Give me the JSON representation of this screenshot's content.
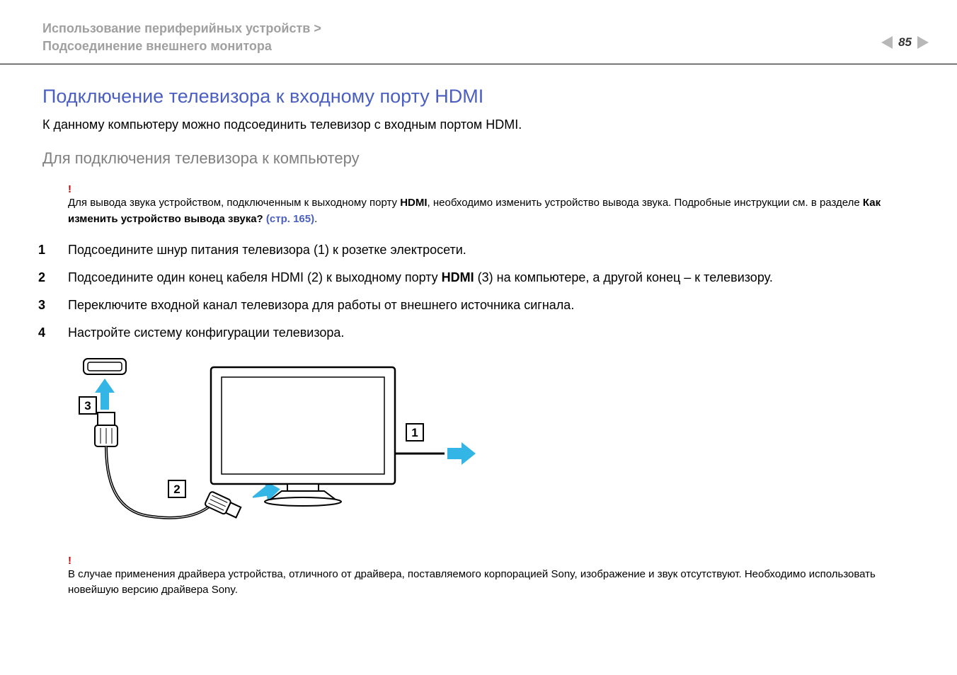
{
  "header": {
    "breadcrumb_line1": "Использование периферийных устройств >",
    "breadcrumb_line2": "Подсоединение внешнего монитора",
    "page_number": "85"
  },
  "colors": {
    "title": "#4a5fc1",
    "muted": "#a0a0a0",
    "warn": "#d00000",
    "accent": "#33b5e5",
    "diagram_stroke": "#000000",
    "nav_arrow": "#b8b8b8"
  },
  "content": {
    "title": "Подключение телевизора к входному порту HDMI",
    "intro": "К данному компьютеру можно подсоединить телевизор с входным портом HDMI.",
    "subheading": "Для подключения телевизора к компьютеру",
    "warning1": {
      "mark": "!",
      "prefix": "Для вывода звука устройством, подключенным к выходному порту ",
      "bold1": "HDMI",
      "mid": ", необходимо изменить устройство вывода звука. Подробные инструкции см. в разделе ",
      "bold2": "Как изменить устройство вывода звука? ",
      "link": "(стр. 165)",
      "suffix": "."
    },
    "steps": [
      "Подсоедините шнур питания телевизора (1) к розетке электросети.",
      "Подсоедините один конец кабеля HDMI (2) к выходному порту HDMI_BOLD (3) на компьютере, а другой конец – к телевизору.",
      "Переключите входной канал телевизора для работы от внешнего источника сигнала.",
      "Настройте систему конфигурации телевизора."
    ],
    "step2_bold": "HDMI",
    "warning2": {
      "mark": "!",
      "text": "В случае применения драйвера устройства, отличного от драйвера, поставляемого корпорацией Sony, изображение и звук отсутствуют. Необходимо использовать новейшую версию драйвера Sony."
    }
  },
  "diagram": {
    "type": "connection-diagram",
    "callouts": [
      "1",
      "2",
      "3"
    ],
    "accent_color": "#33b5e5",
    "stroke_color": "#000000",
    "stroke_width": 2
  }
}
